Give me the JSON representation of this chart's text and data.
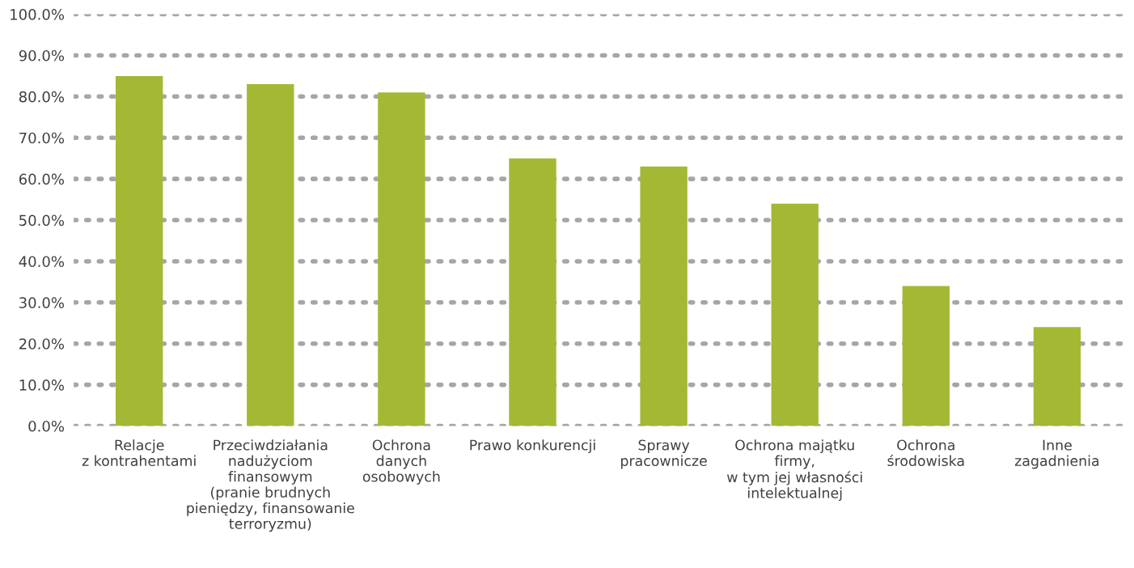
{
  "chart_data": {
    "type": "bar",
    "categories": [
      "Relacje\nz kontrahentami",
      "Przeciwdziałania\nnadużyciom\nfinansowym\n(pranie brudnych\npieniędzy, finansowanie\nterroryzmu)",
      "Ochrona\ndanych\nosobowych",
      "Prawo konkurencji",
      "Sprawy\npracownicze",
      "Ochrona majątku\nfirmy,\nw tym jej własności\nintelektualnej",
      "Ochrona\nśrodowiska",
      "Inne\nzagadnienia"
    ],
    "values": [
      85,
      83,
      81,
      65,
      63,
      54,
      34,
      24
    ],
    "color": "#a5b833",
    "ylim": [
      0,
      100
    ],
    "yticks": [
      {
        "value": 0,
        "label": "0.0%"
      },
      {
        "value": 10,
        "label": "10.0%"
      },
      {
        "value": 20,
        "label": "20.0%"
      },
      {
        "value": 30,
        "label": "30.0%"
      },
      {
        "value": 40,
        "label": "40.0%"
      },
      {
        "value": 50,
        "label": "50.0%"
      },
      {
        "value": 60,
        "label": "60.0%"
      },
      {
        "value": 70,
        "label": "70.0%"
      },
      {
        "value": 80,
        "label": "80.0%"
      },
      {
        "value": 90,
        "label": "90.0%"
      },
      {
        "value": 100,
        "label": "100.0%"
      }
    ],
    "grid": "y",
    "line_style": "dotted"
  }
}
